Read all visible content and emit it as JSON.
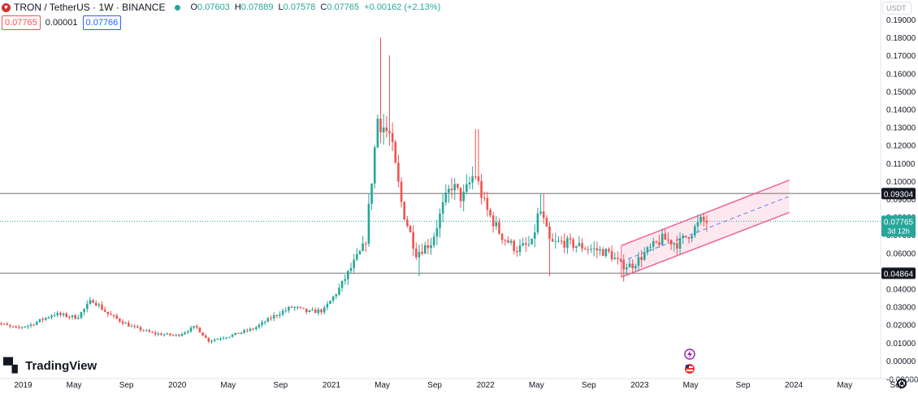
{
  "legend": {
    "title": "TRON / TetherUS · 1W · BINANCE",
    "o_label": "O",
    "o_value": "0.07603",
    "h_label": "H",
    "h_value": "0.07889",
    "l_label": "L",
    "l_value": "0.07578",
    "c_label": "C",
    "c_value": "0.07765",
    "change": "+0.00162 (+2.13%)",
    "sell_price": "0.07765",
    "spread": "0.00001",
    "buy_price": "0.07766"
  },
  "currency_button": "USDT",
  "logo_text": "TradingView",
  "colors": {
    "up": "#26a69a",
    "down": "#ef5350",
    "channel": "#f06292",
    "level": "#9e9e9e",
    "axis_text": "#131722"
  },
  "chart_data": {
    "type": "candlestick",
    "symbol": "TRON / TetherUS",
    "interval": "1W",
    "exchange": "BINANCE",
    "ylim": [
      -0.01,
      0.195
    ],
    "y_ticks": [
      "0.19000",
      "0.18000",
      "0.17000",
      "0.16000",
      "0.15000",
      "0.14000",
      "0.13000",
      "0.12000",
      "0.11000",
      "0.10000",
      "0.09000",
      "0.08000",
      "0.07000",
      "0.06000",
      "0.05000",
      "0.04000",
      "0.03000",
      "0.02000",
      "0.01000",
      "0.00000",
      "-0.00000"
    ],
    "x_ticks": [
      "2019",
      "May",
      "Sep",
      "2020",
      "May",
      "Sep",
      "2021",
      "May",
      "Sep",
      "2022",
      "May",
      "Sep",
      "2023",
      "May",
      "Sep",
      "2024",
      "May",
      "Sep"
    ],
    "horizontal_levels": [
      {
        "label": "0.09304",
        "value": 0.09304
      },
      {
        "label": "0.04864",
        "value": 0.04864
      }
    ],
    "last_price": {
      "label": "0.07765",
      "value": 0.07765,
      "countdown": "3d 12h"
    },
    "anchors": [
      [
        2018.8,
        0.022
      ],
      [
        2018.95,
        0.018
      ],
      [
        2019.05,
        0.02
      ],
      [
        2019.2,
        0.026
      ],
      [
        2019.35,
        0.024
      ],
      [
        2019.45,
        0.034
      ],
      [
        2019.55,
        0.026
      ],
      [
        2019.7,
        0.019
      ],
      [
        2019.85,
        0.015
      ],
      [
        2020.0,
        0.014
      ],
      [
        2020.12,
        0.019
      ],
      [
        2020.2,
        0.011
      ],
      [
        2020.35,
        0.014
      ],
      [
        2020.5,
        0.018
      ],
      [
        2020.65,
        0.026
      ],
      [
        2020.75,
        0.03
      ],
      [
        2020.85,
        0.027
      ],
      [
        2020.95,
        0.028
      ],
      [
        2021.05,
        0.04
      ],
      [
        2021.15,
        0.055
      ],
      [
        2021.22,
        0.065
      ],
      [
        2021.3,
        0.135
      ],
      [
        2021.38,
        0.125
      ],
      [
        2021.46,
        0.085
      ],
      [
        2021.55,
        0.06
      ],
      [
        2021.65,
        0.066
      ],
      [
        2021.72,
        0.085
      ],
      [
        2021.78,
        0.098
      ],
      [
        2021.85,
        0.09
      ],
      [
        2021.93,
        0.105
      ],
      [
        2022.0,
        0.085
      ],
      [
        2022.1,
        0.07
      ],
      [
        2022.2,
        0.062
      ],
      [
        2022.3,
        0.065
      ],
      [
        2022.35,
        0.085
      ],
      [
        2022.42,
        0.065
      ],
      [
        2022.5,
        0.066
      ],
      [
        2022.6,
        0.064
      ],
      [
        2022.7,
        0.062
      ],
      [
        2022.8,
        0.06
      ],
      [
        2022.88,
        0.053
      ],
      [
        2022.95,
        0.053
      ],
      [
        2023.05,
        0.061
      ],
      [
        2023.15,
        0.068
      ],
      [
        2023.25,
        0.065
      ],
      [
        2023.35,
        0.073
      ],
      [
        2023.4,
        0.078
      ],
      [
        2023.45,
        0.077
      ]
    ],
    "channel": {
      "upper": [
        [
          2022.88,
          0.064
        ],
        [
          2023.97,
          0.1005
        ]
      ],
      "lower": [
        [
          2022.88,
          0.0465
        ],
        [
          2023.97,
          0.0825
        ]
      ],
      "mid_dashed": [
        [
          2022.88,
          0.0552
        ],
        [
          2023.97,
          0.0915
        ]
      ]
    },
    "title": "TRON / TetherUS · 1W · BINANCE",
    "xlabel": "",
    "ylabel": ""
  }
}
